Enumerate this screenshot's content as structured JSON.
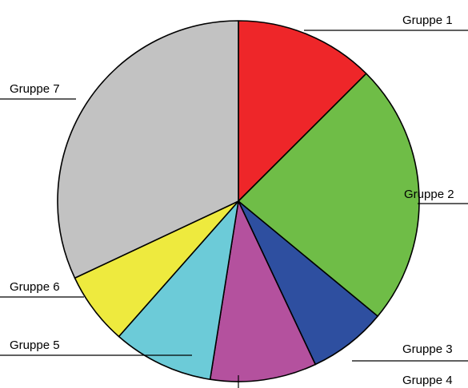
{
  "chart_data": {
    "type": "pie",
    "title": "",
    "slices": [
      {
        "label": "Gruppe 1",
        "value": 12.5,
        "color": "#ee2629"
      },
      {
        "label": "Gruppe 2",
        "value": 23.5,
        "color": "#6fbd47"
      },
      {
        "label": "Gruppe 3",
        "value": 7.0,
        "color": "#2e4fa0"
      },
      {
        "label": "Gruppe 4",
        "value": 9.5,
        "color": "#b4519e"
      },
      {
        "label": "Gruppe 5",
        "value": 9.0,
        "color": "#6ccbd8"
      },
      {
        "label": "Gruppe 6",
        "value": 6.5,
        "color": "#eeea3e"
      },
      {
        "label": "Gruppe 7",
        "value": 32.0,
        "color": "#c2c2c2"
      }
    ],
    "start": "12 o'clock",
    "direction": "clockwise",
    "legend": "none"
  }
}
